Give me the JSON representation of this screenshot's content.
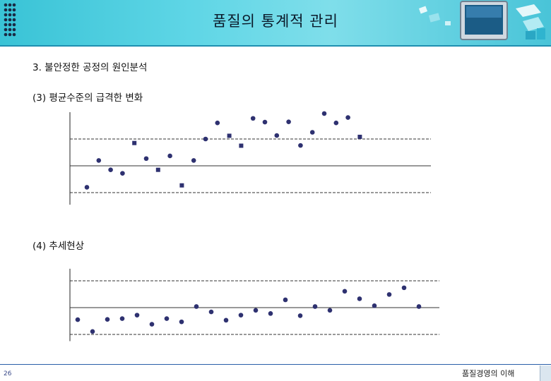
{
  "slide": {
    "title": "품질의 통계적 관리",
    "section": "3. 불안정한 공정의 원인분석",
    "footer_title": "품질경영의 이해",
    "page_number": "26"
  },
  "colors": {
    "header_bg": "#49c4d8",
    "marker": "#2e3170",
    "footer_rule": "#2a5fa8"
  },
  "chart_data": [
    {
      "type": "scatter",
      "title": "(3) 평균수준의 급격한 변화",
      "center_line": 0,
      "upper_limit": 1,
      "lower_limit": -1,
      "ylim": [
        -1.45,
        2.0
      ],
      "x": [
        1,
        2,
        3,
        4,
        5,
        6,
        7,
        8,
        9,
        10,
        11,
        12,
        13,
        14,
        15,
        16,
        17,
        18,
        19,
        20,
        21,
        22,
        23,
        24,
        25,
        26
      ],
      "y": [
        -0.8,
        0.2,
        -0.15,
        -0.28,
        0.85,
        0.27,
        -0.15,
        0.37,
        -0.73,
        0.2,
        1.0,
        1.6,
        1.12,
        0.75,
        1.77,
        1.63,
        1.13,
        1.64,
        0.76,
        1.25,
        1.95,
        1.6,
        1.8,
        1.08,
        0,
        0
      ],
      "markers": [
        "circle",
        "circle",
        "circle",
        "circle",
        "square",
        "circle",
        "square",
        "circle",
        "square",
        "circle",
        "circle",
        "circle",
        "square",
        "square",
        "circle",
        "circle",
        "circle",
        "circle",
        "circle",
        "circle",
        "circle",
        "circle",
        "circle",
        "square",
        "none",
        "none"
      ]
    },
    {
      "type": "scatter",
      "title": "(4) 추세현상",
      "center_line": 0,
      "upper_limit": 1,
      "lower_limit": -1,
      "ylim": [
        -1.25,
        1.45
      ],
      "x": [
        1,
        2,
        3,
        4,
        5,
        6,
        7,
        8,
        9,
        10,
        11,
        12,
        13,
        14,
        15,
        16,
        17,
        18,
        19,
        20,
        21,
        22,
        23,
        24
      ],
      "y": [
        -0.45,
        -0.89,
        -0.44,
        -0.41,
        -0.28,
        -0.62,
        -0.41,
        -0.53,
        0.04,
        -0.16,
        -0.47,
        -0.28,
        -0.1,
        -0.22,
        0.29,
        -0.3,
        0.04,
        -0.1,
        0.61,
        0.33,
        0.07,
        0.49,
        0.74,
        0.04
      ],
      "markers": [
        "circle",
        "circle",
        "circle",
        "circle",
        "circle",
        "circle",
        "circle",
        "circle",
        "circle",
        "circle",
        "circle",
        "circle",
        "circle",
        "circle",
        "circle",
        "circle",
        "circle",
        "circle",
        "circle",
        "circle",
        "circle",
        "circle",
        "circle",
        "circle"
      ]
    }
  ]
}
